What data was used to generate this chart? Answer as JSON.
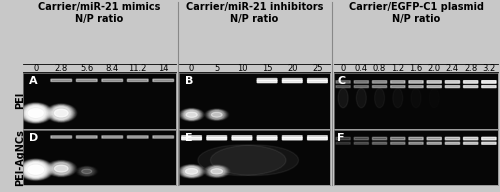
{
  "title_col1": "Carrier/miR-21 mimics\nN/P ratio",
  "title_col2": "Carrier/miR-21 inhibitors\nN/P ratio",
  "title_col3": "Carrier/EGFP-C1 plasmid\nN/P ratio",
  "ticks_col1": [
    "0",
    "2.8",
    "5.6",
    "8.4",
    "11.2",
    "14"
  ],
  "ticks_col2": [
    "0",
    "5",
    "10",
    "15",
    "20",
    "25"
  ],
  "ticks_col3": [
    "0",
    "0.4",
    "0.8",
    "1.2",
    "1.6",
    "2.0",
    "2.4",
    "2.8",
    "3.2"
  ],
  "row_labels": [
    "PEI",
    "PEI-AgNCs"
  ],
  "panel_labels": [
    "A",
    "B",
    "C",
    "D",
    "E",
    "F"
  ],
  "outer_bg": "#c8c8c8",
  "text_color": "#000000",
  "title_fontsize": 7.0,
  "tick_fontsize": 6.0,
  "panel_label_fontsize": 8,
  "row_label_fontsize": 7.0
}
